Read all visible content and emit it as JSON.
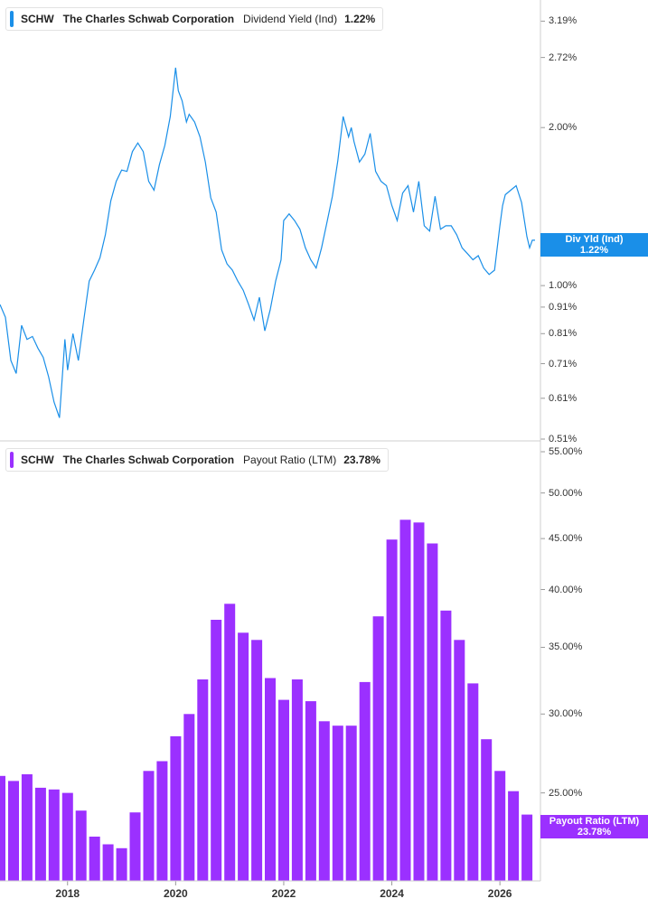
{
  "colors": {
    "yield": "#1a8fe8",
    "payout": "#9b30ff",
    "axis": "#cfcfcf"
  },
  "top_legend": {
    "ticker": "SCHW",
    "company": "The Charles Schwab Corporation",
    "metric": "Dividend Yield (Ind)",
    "value": "1.22%"
  },
  "bottom_legend": {
    "ticker": "SCHW",
    "company": "The Charles Schwab Corporation",
    "metric": "Payout Ratio (LTM)",
    "value": "23.78%"
  },
  "top_tag": {
    "label": "Div Yld (Ind)",
    "value": "1.22%"
  },
  "bottom_tag": {
    "label": "Payout Ratio (LTM)",
    "value": "23.78%"
  },
  "chart_data": [
    {
      "type": "line",
      "scale": "log",
      "ylim": [
        0.51,
        3.5
      ],
      "y_ticks": [
        {
          "value": 3.19,
          "label": "3.19%"
        },
        {
          "value": 2.72,
          "label": "2.72%"
        },
        {
          "value": 2.0,
          "label": "2.00%"
        },
        {
          "value": 1.0,
          "label": "1.00%"
        },
        {
          "value": 0.91,
          "label": "0.91%"
        },
        {
          "value": 0.81,
          "label": "0.81%"
        },
        {
          "value": 0.71,
          "label": "0.71%"
        },
        {
          "value": 0.61,
          "label": "0.61%"
        },
        {
          "value": 0.51,
          "label": "0.51%"
        }
      ],
      "x_ticks": [
        {
          "year": 2018,
          "label": "2018"
        },
        {
          "year": 2020,
          "label": "2020"
        },
        {
          "year": 2022,
          "label": "2022"
        },
        {
          "year": 2024,
          "label": "2024"
        },
        {
          "year": 2026,
          "label": "2026"
        }
      ],
      "xlim": [
        2016.75,
        2026.75
      ],
      "series": [
        {
          "name": "Dividend Yield (Ind)",
          "x": [
            2016.75,
            2016.85,
            2016.95,
            2017.05,
            2017.15,
            2017.25,
            2017.35,
            2017.45,
            2017.55,
            2017.65,
            2017.75,
            2017.85,
            2017.95,
            2018.0,
            2018.1,
            2018.2,
            2018.3,
            2018.4,
            2018.5,
            2018.6,
            2018.7,
            2018.8,
            2018.9,
            2019.0,
            2019.1,
            2019.2,
            2019.3,
            2019.4,
            2019.5,
            2019.6,
            2019.7,
            2019.8,
            2019.9,
            2020.0,
            2020.05,
            2020.12,
            2020.2,
            2020.25,
            2020.35,
            2020.45,
            2020.55,
            2020.65,
            2020.75,
            2020.85,
            2020.95,
            2021.05,
            2021.15,
            2021.25,
            2021.35,
            2021.45,
            2021.55,
            2021.65,
            2021.75,
            2021.85,
            2021.95,
            2022.0,
            2022.1,
            2022.2,
            2022.3,
            2022.4,
            2022.5,
            2022.6,
            2022.7,
            2022.8,
            2022.9,
            2023.0,
            2023.1,
            2023.2,
            2023.25,
            2023.3,
            2023.4,
            2023.5,
            2023.6,
            2023.7,
            2023.8,
            2023.9,
            2024.0,
            2024.1,
            2024.2,
            2024.3,
            2024.4,
            2024.5,
            2024.6,
            2024.7,
            2024.8,
            2024.9,
            2025.0,
            2025.1,
            2025.2,
            2025.3,
            2025.4,
            2025.5,
            2025.6,
            2025.7,
            2025.8,
            2025.9,
            2026.0,
            2026.05,
            2026.1,
            2026.2,
            2026.3,
            2026.4,
            2026.5,
            2026.55,
            2026.6,
            2026.65
          ],
          "y": [
            0.92,
            0.87,
            0.72,
            0.68,
            0.84,
            0.79,
            0.8,
            0.76,
            0.73,
            0.67,
            0.6,
            0.56,
            0.79,
            0.69,
            0.81,
            0.72,
            0.86,
            1.02,
            1.07,
            1.13,
            1.25,
            1.45,
            1.58,
            1.66,
            1.65,
            1.8,
            1.87,
            1.8,
            1.58,
            1.52,
            1.7,
            1.85,
            2.1,
            2.6,
            2.35,
            2.25,
            2.05,
            2.12,
            2.05,
            1.92,
            1.72,
            1.47,
            1.38,
            1.17,
            1.1,
            1.07,
            1.02,
            0.98,
            0.92,
            0.86,
            0.95,
            0.82,
            0.9,
            1.02,
            1.12,
            1.33,
            1.37,
            1.33,
            1.28,
            1.18,
            1.12,
            1.08,
            1.18,
            1.32,
            1.48,
            1.73,
            2.1,
            1.92,
            2.0,
            1.88,
            1.72,
            1.78,
            1.95,
            1.65,
            1.58,
            1.55,
            1.42,
            1.33,
            1.5,
            1.55,
            1.38,
            1.58,
            1.3,
            1.27,
            1.48,
            1.28,
            1.3,
            1.3,
            1.25,
            1.18,
            1.15,
            1.12,
            1.14,
            1.08,
            1.05,
            1.07,
            1.3,
            1.42,
            1.49,
            1.52,
            1.55,
            1.44,
            1.24,
            1.18,
            1.22,
            1.22
          ],
          "color": "#1a8fe8"
        }
      ]
    },
    {
      "type": "bar",
      "scale": "log",
      "ylim": [
        20.4,
        55.0
      ],
      "y_ticks": [
        {
          "value": 55,
          "label": "55.00%"
        },
        {
          "value": 50,
          "label": "50.00%"
        },
        {
          "value": 45,
          "label": "45.00%"
        },
        {
          "value": 40,
          "label": "40.00%"
        },
        {
          "value": 35,
          "label": "35.00%"
        },
        {
          "value": 30,
          "label": "30.00%"
        },
        {
          "value": 25,
          "label": "25.00%"
        }
      ],
      "x_ticks": [
        {
          "year": 2018,
          "label": "2018"
        },
        {
          "year": 2020,
          "label": "2020"
        },
        {
          "year": 2022,
          "label": "2022"
        },
        {
          "year": 2024,
          "label": "2024"
        },
        {
          "year": 2026,
          "label": "2026"
        }
      ],
      "xlim": [
        2016.75,
        2026.75
      ],
      "series": [
        {
          "name": "Payout Ratio (LTM)",
          "x": [
            2016.75,
            2017.0,
            2017.25,
            2017.5,
            2017.75,
            2018.0,
            2018.25,
            2018.5,
            2018.75,
            2019.0,
            2019.25,
            2019.5,
            2019.75,
            2020.0,
            2020.25,
            2020.5,
            2020.75,
            2021.0,
            2021.25,
            2021.5,
            2021.75,
            2022.0,
            2022.25,
            2022.5,
            2022.75,
            2023.0,
            2023.25,
            2023.5,
            2023.75,
            2024.0,
            2024.25,
            2024.5,
            2024.75,
            2025.0,
            2025.25,
            2025.5,
            2025.75,
            2026.0,
            2026.25,
            2026.5
          ],
          "values": [
            26.0,
            25.7,
            26.1,
            25.3,
            25.2,
            25.0,
            24.0,
            22.6,
            22.2,
            22.0,
            23.9,
            26.3,
            26.9,
            28.5,
            30.0,
            32.5,
            37.3,
            38.7,
            36.2,
            35.6,
            32.6,
            31.0,
            32.5,
            30.9,
            29.5,
            29.2,
            29.2,
            32.3,
            37.6,
            44.9,
            47.0,
            46.7,
            44.5,
            38.1,
            35.6,
            32.2,
            28.3,
            26.3,
            25.1,
            23.78
          ],
          "color": "#9b30ff"
        }
      ]
    }
  ]
}
